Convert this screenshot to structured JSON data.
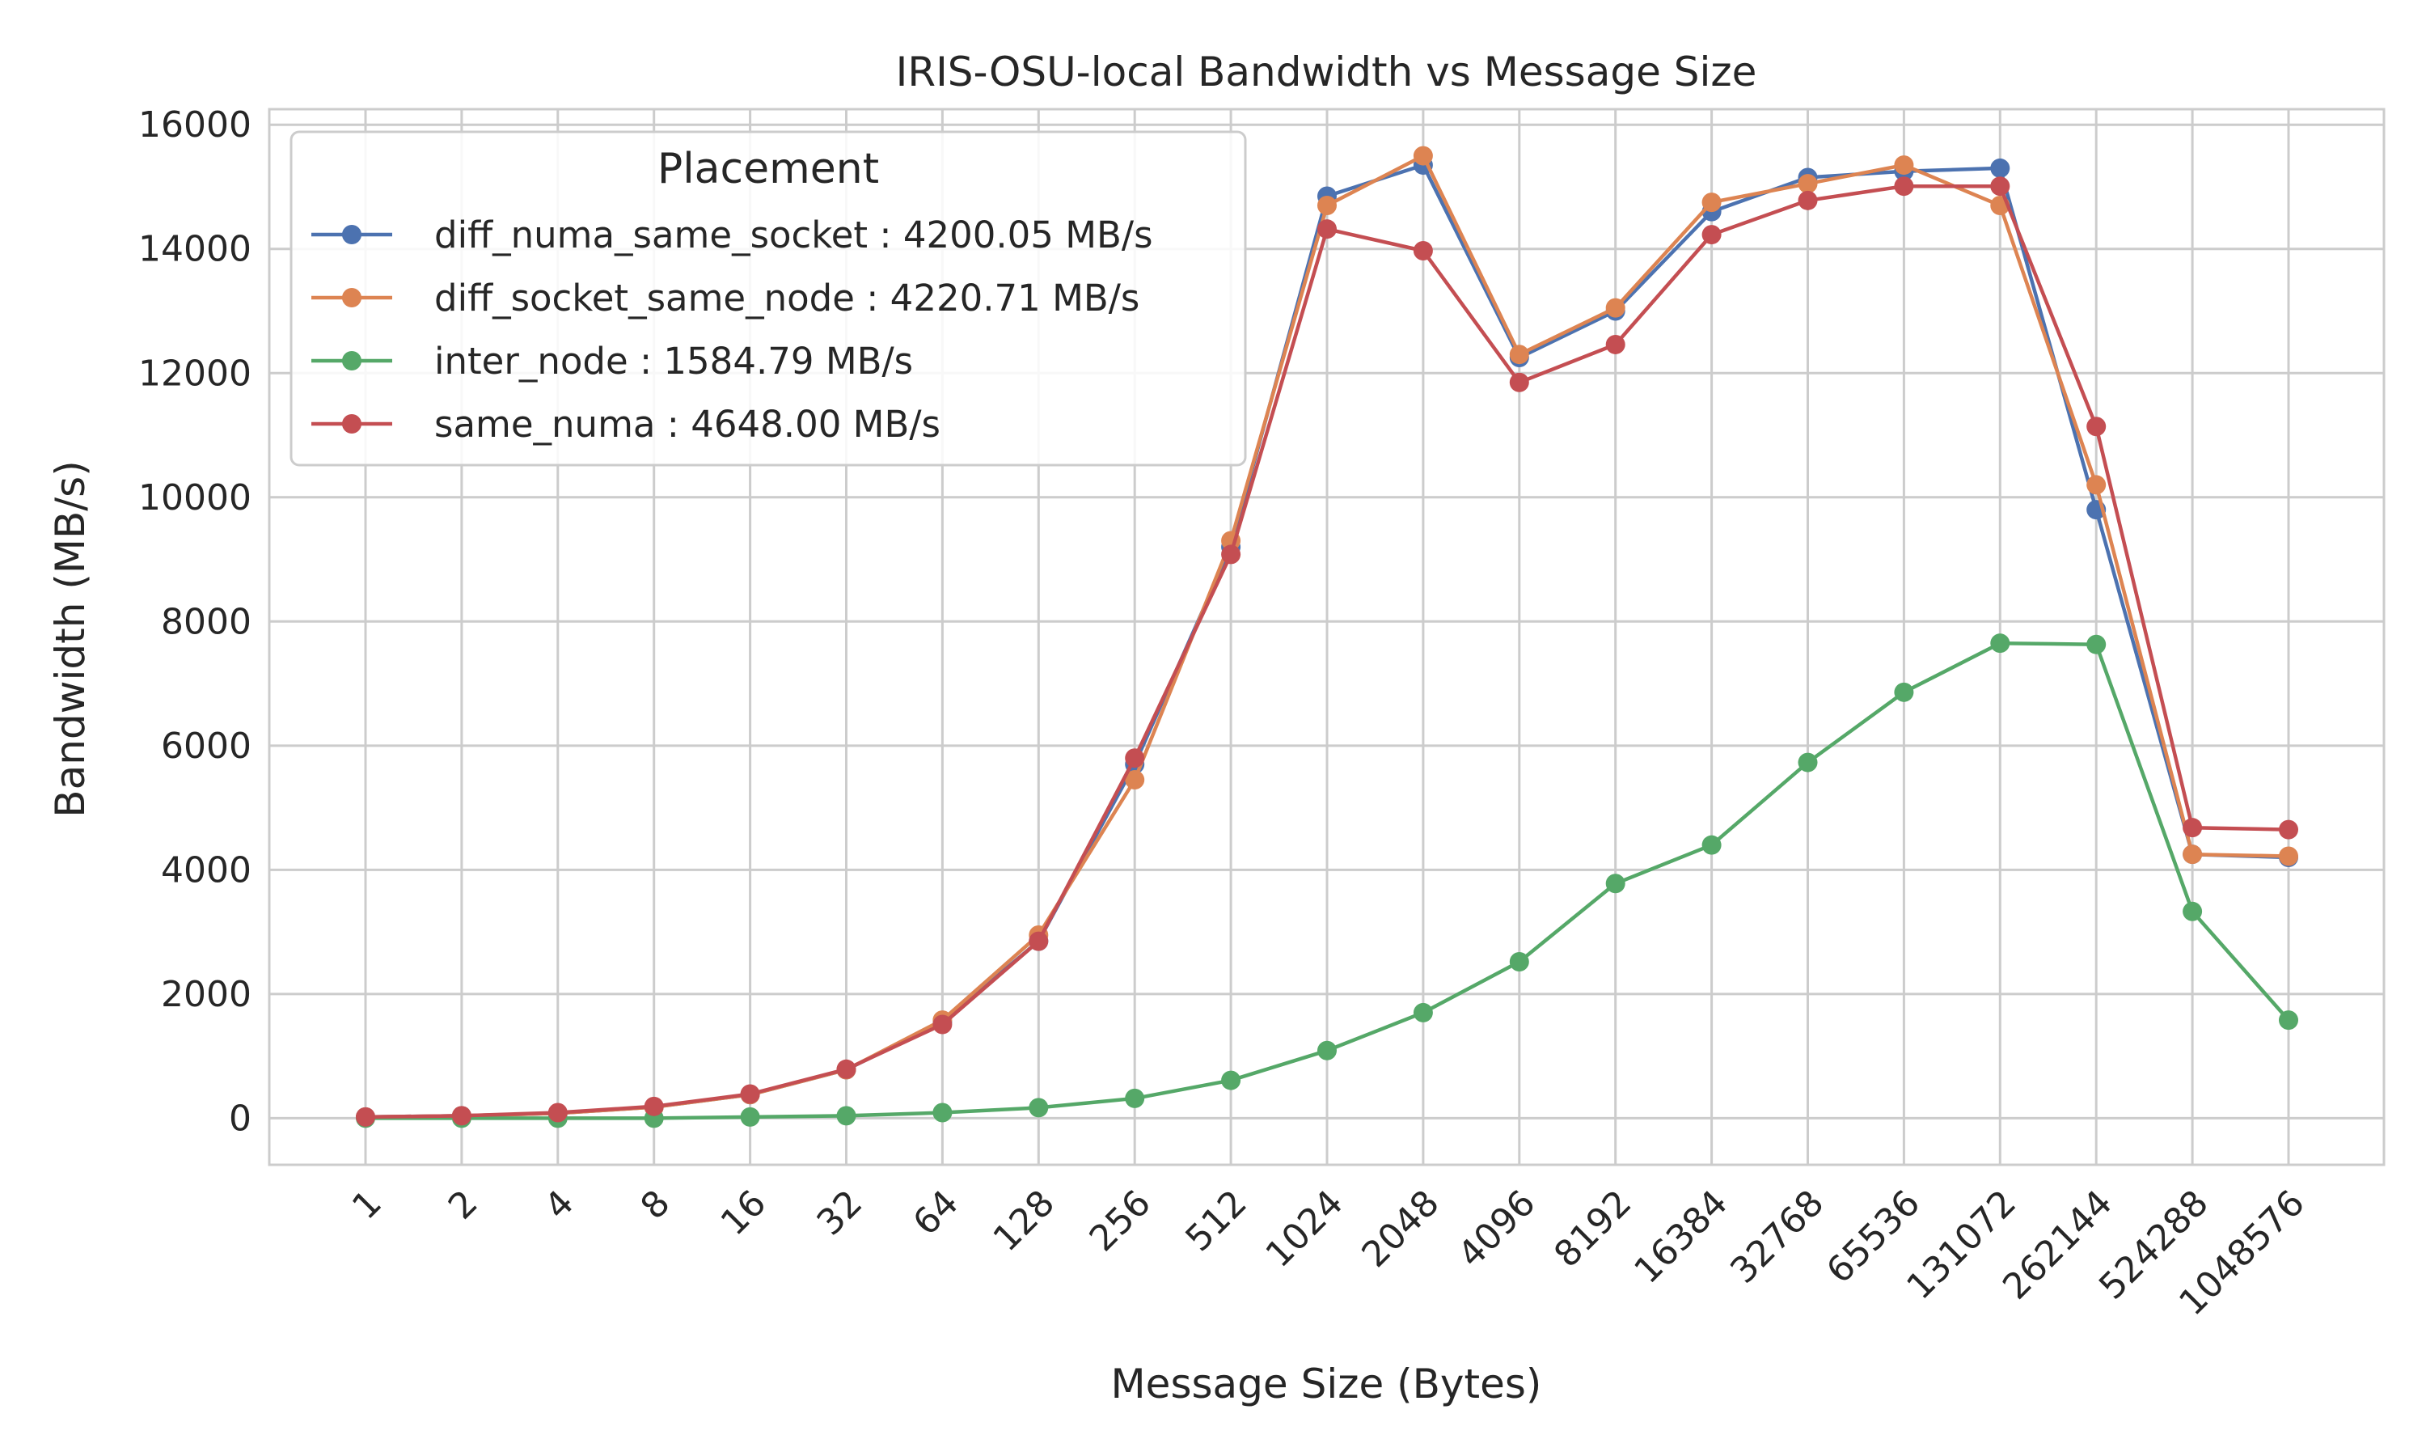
{
  "chart_data": {
    "type": "line",
    "title": "IRIS-OSU-local Bandwidth vs Message Size",
    "xlabel": "Message Size (Bytes)",
    "ylabel": "Bandwidth (MB/s)",
    "categories": [
      "1",
      "2",
      "4",
      "8",
      "16",
      "32",
      "64",
      "128",
      "256",
      "512",
      "1024",
      "2048",
      "4096",
      "8192",
      "16384",
      "32768",
      "65536",
      "131072",
      "262144",
      "524288",
      "1048576"
    ],
    "ylim": [
      -750,
      16250
    ],
    "yticks": [
      0,
      2000,
      4000,
      6000,
      8000,
      10000,
      12000,
      14000,
      16000
    ],
    "ytick_labels": [
      "0",
      "2000",
      "4000",
      "6000",
      "8000",
      "10000",
      "12000",
      "14000",
      "16000"
    ],
    "grid": true,
    "legend": {
      "title": "Placement",
      "placement": "upper-left"
    },
    "series": [
      {
        "name": "diff_numa_same_socket : 4200.05 MB/s",
        "color": "#4c72b0",
        "values": [
          20,
          40,
          80,
          180,
          380,
          780,
          1550,
          2850,
          5700,
          9200,
          14850,
          15350,
          12250,
          13000,
          14600,
          15150,
          15250,
          15300,
          9800,
          4250,
          4200
        ]
      },
      {
        "name": "diff_socket_same_node : 4220.71 MB/s",
        "color": "#dd8452",
        "values": [
          20,
          40,
          80,
          180,
          380,
          780,
          1580,
          2950,
          5450,
          9300,
          14700,
          15500,
          12300,
          13050,
          14750,
          15050,
          15350,
          14700,
          10200,
          4250,
          4220
        ]
      },
      {
        "name": "inter_node : 1584.79 MB/s",
        "color": "#55a868",
        "values": [
          0,
          0,
          0,
          0,
          20,
          40,
          90,
          170,
          320,
          610,
          1090,
          1700,
          2520,
          3780,
          4400,
          5730,
          6860,
          7650,
          7630,
          3330,
          1580
        ]
      },
      {
        "name": "same_numa : 4648.00 MB/s",
        "color": "#c44e52",
        "values": [
          20,
          40,
          90,
          190,
          390,
          790,
          1510,
          2850,
          5800,
          9080,
          14320,
          13970,
          11850,
          12460,
          14230,
          14780,
          15010,
          15010,
          11140,
          4680,
          4648
        ]
      }
    ]
  }
}
